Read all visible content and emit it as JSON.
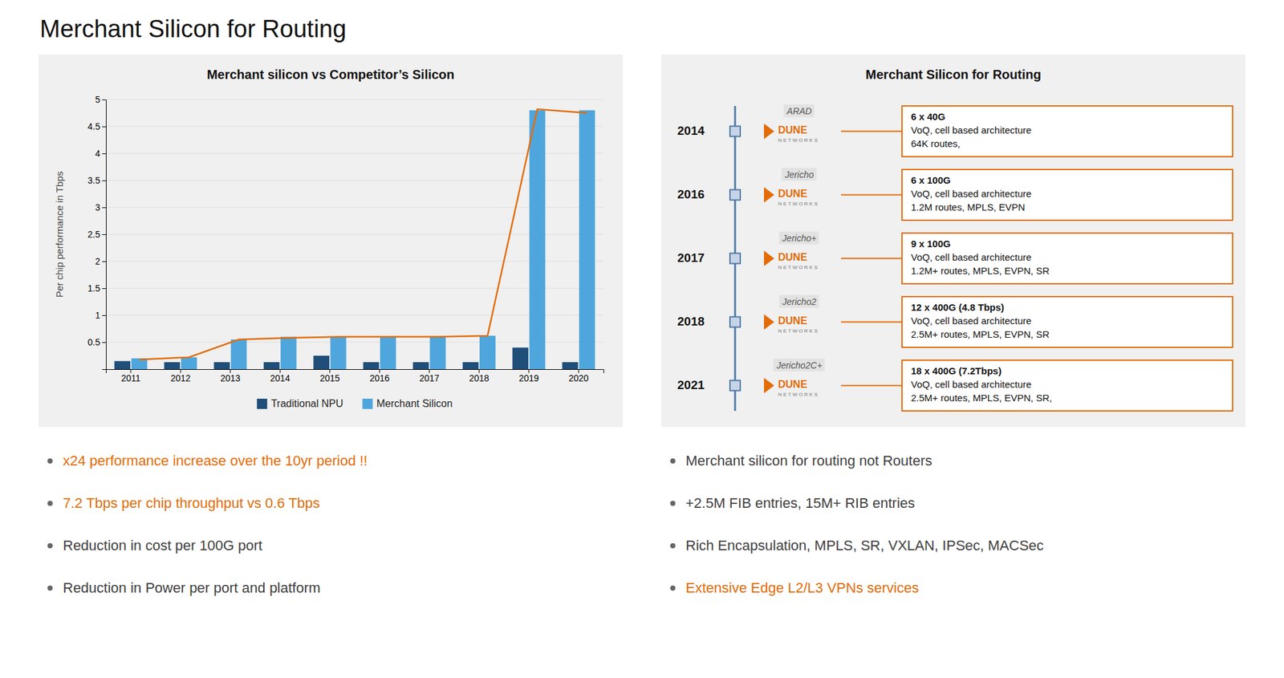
{
  "title": "Merchant Silicon for Routing",
  "chart_data": [
    {
      "type": "bar",
      "title": "Merchant silicon vs Competitor’s Silicon",
      "categories": [
        "2011",
        "2012",
        "2013",
        "2014",
        "2015",
        "2016",
        "2017",
        "2018",
        "2019",
        "2020"
      ],
      "series": [
        {
          "name": "Traditional NPU",
          "color": "#1F4E79",
          "values": [
            0.15,
            0.13,
            0.13,
            0.13,
            0.25,
            0.13,
            0.13,
            0.13,
            0.4,
            0.13
          ]
        },
        {
          "name": "Merchant Silicon",
          "color": "#4EA6DC",
          "values": [
            0.2,
            0.22,
            0.55,
            0.6,
            0.6,
            0.6,
            0.6,
            0.62,
            4.8,
            4.8
          ]
        },
        {
          "type": "line",
          "color": "#E36C09",
          "values": [
            0.18,
            0.22,
            0.55,
            0.58,
            0.6,
            0.6,
            0.6,
            0.62,
            4.82,
            4.75
          ]
        }
      ],
      "ylabel": "Per chip performance in Tbps",
      "ylim": [
        0,
        5
      ],
      "yticks": [
        0.5,
        1,
        1.5,
        2,
        2.5,
        3,
        3.5,
        4,
        4.5,
        5
      ],
      "grid": true,
      "legend": "bottom",
      "annotations": [
        {
          "text": "x24 performance increase over the 10yr period !!",
          "color": "#E36C09"
        },
        {
          "text": "7.2 Tbps per chip throughput vs 0.6 Tbps",
          "color": "#E36C09"
        },
        {
          "text": "Reduction in cost per 100G port",
          "color": "#404040"
        },
        {
          "text": "Reduction in Power per port and platform",
          "color": "#404040"
        }
      ]
    },
    {
      "type": "timeline",
      "title": "Merchant Silicon for Routing",
      "categories": [
        "2014",
        "2016",
        "2017",
        "2018",
        "2021"
      ],
      "labels": [
        "ARAD",
        "Jericho",
        "Jericho+",
        "Jericho2",
        "Jericho2C+"
      ],
      "logo": "DUNE",
      "logo_subtitle": "N E T W O R K S",
      "descriptions": [
        [
          "6 x 40G",
          "VoQ, cell based architecture",
          "64K routes,"
        ],
        [
          "6 x 100G",
          "VoQ, cell based architecture",
          "1.2M routes, MPLS, EVPN"
        ],
        [
          "9 x 100G",
          "VoQ, cell based architecture",
          "1.2M+ routes, MPLS, EVPN, SR"
        ],
        [
          "12 x 400G (4.8 Tbps)",
          "VoQ, cell based architecture",
          "2.5M+ routes, MPLS, EVPN, SR"
        ],
        [
          "18 x 400G (7.2Tbps)",
          "VoQ, cell based architecture",
          "2.5M+ routes, MPLS, EVPN, SR,"
        ]
      ],
      "annotations": [
        {
          "text": "Merchant silicon for routing not Routers",
          "color": "#404040"
        },
        {
          "text": "+2.5M FIB entries, 15M+ RIB entries",
          "color": "#404040"
        },
        {
          "text": "Rich Encapsulation, MPLS, SR, VXLAN, IPSec, MACSec",
          "color": "#404040"
        },
        {
          "text": "Extensive Edge L2/L3 VPNs services",
          "color": "#E36C09"
        }
      ]
    }
  ]
}
